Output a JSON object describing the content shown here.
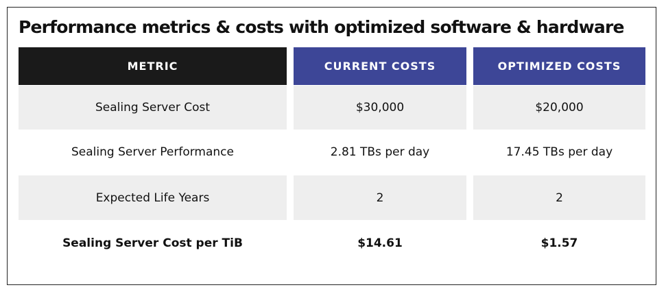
{
  "title": "Performance metrics & costs with optimized software & hardware",
  "colors": {
    "metric_header": "#1a1a1a",
    "cost_header": "#3d4697",
    "stripe": "#eeeeee"
  },
  "table": {
    "headers": [
      "METRIC",
      "CURRENT COSTS",
      "OPTIMIZED COSTS"
    ],
    "rows": [
      [
        "Sealing Server Cost",
        "$30,000",
        "$20,000"
      ],
      [
        "Sealing Server Performance",
        "2.81 TBs per day",
        "17.45 TBs per day"
      ],
      [
        "Expected Life Years",
        "2",
        "2"
      ],
      [
        "Sealing Server Cost per TiB",
        "$14.61",
        "$1.57"
      ]
    ]
  }
}
